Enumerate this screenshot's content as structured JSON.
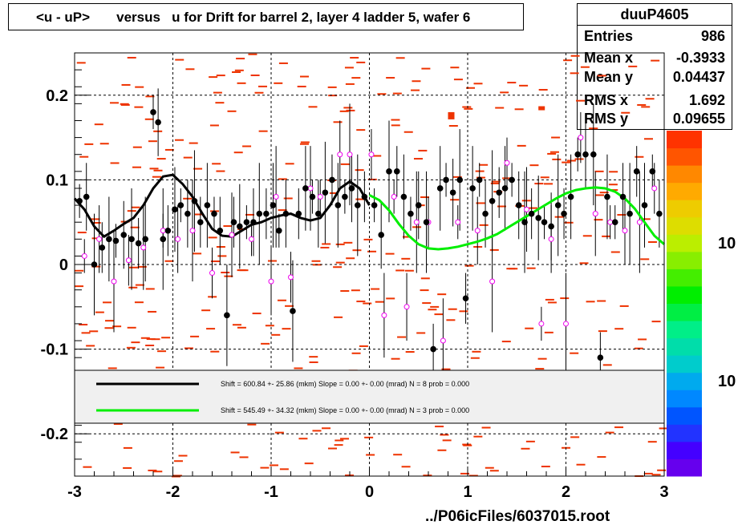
{
  "title": "<u - uP>       versus   u for Drift for barrel 2, layer 4 ladder 5, wafer 6",
  "stats": {
    "name": "duuP4605",
    "rows": [
      {
        "label": "Entries",
        "value": "986"
      },
      {
        "label": "Mean x",
        "value": "-0.3933"
      },
      {
        "label": "Mean y",
        "value": "0.04437"
      },
      {
        "label": "RMS x",
        "value": "1.692"
      },
      {
        "label": "RMS y",
        "value": "0.09655"
      }
    ]
  },
  "footer": "../P06icFiles/6037015.root",
  "legend": [
    {
      "text": "Shift =   600.84 +- 25.86 (mkm) Slope =     0.00 +- 0.00 (mrad)  N = 8 prob = 0.000",
      "color": "#000000"
    },
    {
      "text": "Shift =   545.49 +- 34.32 (mkm) Slope =     0.00 +- 0.00 (mrad)  N = 3 prob = 0.000",
      "color": "#00ee00"
    }
  ],
  "colorbar_labels": [
    "10",
    "10"
  ],
  "chart_data": {
    "type": "scatter",
    "xlim": [
      -3,
      3
    ],
    "ylim": [
      -0.25,
      0.25
    ],
    "x_ticks": [
      "-3",
      "-2",
      "-1",
      "0",
      "1",
      "2",
      "3"
    ],
    "y_ticks": [
      "0.2",
      "0.1",
      "0",
      "-0.1",
      "-0.2"
    ],
    "y_tick_values": [
      0.2,
      0.1,
      0,
      -0.1,
      -0.2
    ],
    "grid": true,
    "series_black_profile": {
      "x": [
        -2.95,
        -2.88,
        -2.8,
        -2.72,
        -2.65,
        -2.58,
        -2.5,
        -2.42,
        -2.35,
        -2.28,
        -2.2,
        -2.15,
        -2.1,
        -2.05,
        -1.98,
        -1.92,
        -1.85,
        -1.78,
        -1.72,
        -1.65,
        -1.58,
        -1.52,
        -1.45,
        -1.38,
        -1.32,
        -1.25,
        -1.18,
        -1.12,
        -1.05,
        -0.98,
        -0.92,
        -0.85,
        -0.78,
        -0.72,
        -0.65,
        -0.58,
        -0.52,
        -0.45,
        -0.38,
        -0.32,
        -0.25,
        -0.18,
        -0.12,
        -0.05
      ],
      "y": [
        0.075,
        0.08,
        0.0,
        0.02,
        0.03,
        0.028,
        0.035,
        0.03,
        0.025,
        0.03,
        0.18,
        0.168,
        0.03,
        0.04,
        0.065,
        0.07,
        0.06,
        0.075,
        0.05,
        0.07,
        0.06,
        0.04,
        -0.06,
        0.05,
        0.045,
        0.05,
        0.05,
        0.06,
        0.06,
        0.07,
        0.04,
        0.06,
        -0.055,
        0.06,
        0.09,
        0.08,
        0.06,
        0.085,
        0.1,
        0.07,
        0.08,
        0.09,
        0.07,
        0.08
      ]
    },
    "series_black_profile_right": {
      "x": [
        0.05,
        0.12,
        0.2,
        0.28,
        0.35,
        0.42,
        0.5,
        0.58,
        0.65,
        0.72,
        0.78,
        0.85,
        0.92,
        0.98,
        1.05,
        1.12,
        1.18,
        1.25,
        1.32,
        1.38,
        1.45,
        1.52,
        1.58,
        1.65,
        1.72,
        1.78,
        1.85,
        1.92,
        1.98,
        2.05,
        2.12,
        2.2,
        2.28,
        2.35,
        2.42,
        2.5,
        2.58,
        2.65,
        2.72,
        2.8,
        2.88,
        2.95
      ],
      "y": [
        0.07,
        0.035,
        0.11,
        0.11,
        0.08,
        0.06,
        0.07,
        0.05,
        -0.1,
        0.09,
        0.1,
        0.085,
        0.1,
        -0.04,
        0.09,
        0.1,
        0.06,
        0.075,
        0.085,
        0.09,
        0.1,
        0.07,
        0.05,
        0.06,
        0.055,
        0.05,
        0.045,
        0.07,
        0.06,
        0.08,
        0.13,
        0.13,
        0.13,
        -0.11,
        0.08,
        0.05,
        0.08,
        0.06,
        0.11,
        0.07,
        0.11,
        0.06
      ]
    },
    "series_magenta": {
      "x": [
        -2.9,
        -2.75,
        -2.6,
        -2.45,
        -2.3,
        -2.1,
        -1.95,
        -1.8,
        -1.6,
        -1.4,
        -1.2,
        -1.0,
        -0.95,
        -0.8,
        -0.6,
        -0.5,
        -0.3,
        -0.2,
        0.02,
        0.15,
        0.25,
        0.38,
        0.48,
        0.6,
        0.75,
        0.9,
        1.1,
        1.25,
        1.4,
        1.6,
        1.75,
        1.85,
        2.0,
        2.15,
        2.3,
        2.45,
        2.6,
        2.75,
        2.9
      ],
      "y": [
        0.01,
        0.03,
        -0.02,
        0.005,
        0.02,
        0.04,
        0.03,
        0.04,
        -0.01,
        0.035,
        0.03,
        -0.02,
        0.08,
        -0.015,
        0.09,
        0.08,
        0.13,
        0.13,
        0.13,
        -0.06,
        0.08,
        -0.05,
        0.05,
        0.05,
        -0.09,
        0.05,
        0.04,
        -0.02,
        0.12,
        0.065,
        -0.07,
        0.03,
        -0.07,
        0.15,
        0.06,
        0.05,
        0.04,
        0.05,
        0.09
      ]
    },
    "fit_black": {
      "x": [
        -3.0,
        -2.9,
        -2.8,
        -2.7,
        -2.6,
        -2.5,
        -2.4,
        -2.3,
        -2.2,
        -2.1,
        -2.0,
        -1.9,
        -1.8,
        -1.7,
        -1.6,
        -1.5,
        -1.4,
        -1.3,
        -1.2,
        -1.1,
        -1.0,
        -0.9,
        -0.8,
        -0.7,
        -0.6,
        -0.5,
        -0.4,
        -0.3,
        -0.2,
        -0.1,
        0.0
      ],
      "y": [
        0.078,
        0.065,
        0.045,
        0.033,
        0.04,
        0.048,
        0.055,
        0.07,
        0.09,
        0.104,
        0.106,
        0.095,
        0.08,
        0.06,
        0.042,
        0.034,
        0.033,
        0.04,
        0.047,
        0.05,
        0.055,
        0.058,
        0.06,
        0.055,
        0.052,
        0.055,
        0.07,
        0.09,
        0.098,
        0.09,
        0.07
      ]
    },
    "fit_green": {
      "x": [
        0.0,
        0.1,
        0.2,
        0.3,
        0.4,
        0.5,
        0.6,
        0.7,
        0.8,
        0.9,
        1.0,
        1.1,
        1.2,
        1.3,
        1.4,
        1.5,
        1.6,
        1.7,
        1.8,
        1.9,
        2.0,
        2.1,
        2.2,
        2.3,
        2.4,
        2.5,
        2.6,
        2.7,
        2.8,
        2.9,
        3.0
      ],
      "y": [
        0.082,
        0.076,
        0.064,
        0.048,
        0.034,
        0.024,
        0.019,
        0.018,
        0.019,
        0.021,
        0.024,
        0.027,
        0.031,
        0.036,
        0.043,
        0.05,
        0.057,
        0.064,
        0.071,
        0.078,
        0.084,
        0.088,
        0.09,
        0.091,
        0.09,
        0.086,
        0.078,
        0.066,
        0.05,
        0.034,
        0.024
      ]
    }
  }
}
